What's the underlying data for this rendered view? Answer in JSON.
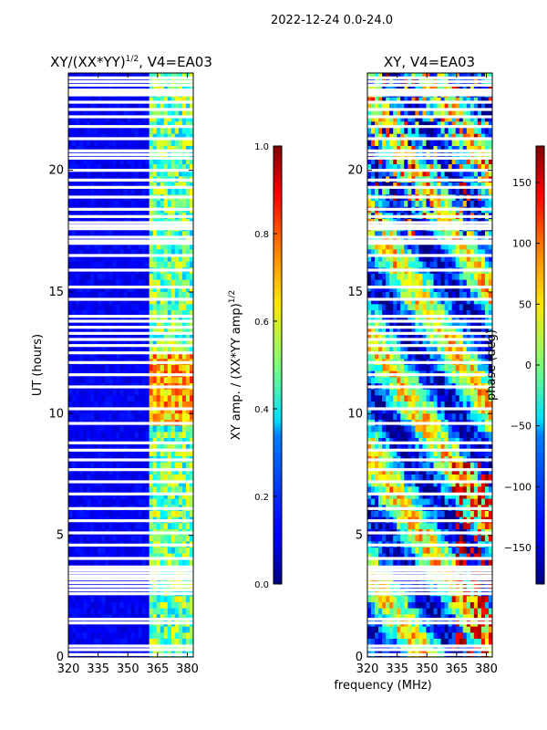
{
  "figure_title": "2022-12-24 0.0-24.0",
  "chart_data": [
    {
      "type": "heatmap",
      "title": "XY/(XX*YY)^1/2, V4=EA03",
      "title_main": "XY/(XX*YY)",
      "title_sup": "1/2",
      "title_tail": ", V4=EA03",
      "xlabel": "",
      "ylabel": "UT (hours)",
      "xlim": [
        320,
        383
      ],
      "ylim": [
        0,
        24
      ],
      "xticks": [
        320,
        335,
        350,
        365,
        380
      ],
      "yticks": [
        0,
        5,
        10,
        15,
        20
      ],
      "colorbar": {
        "label": "XY amp. / (XX*YY amp)^1/2",
        "label_main": "XY amp. / (XX*YY amp)",
        "label_sup": "1/2",
        "range": [
          0.0,
          1.0
        ],
        "ticks": [
          "0.0",
          "0.2",
          "0.4",
          "0.6",
          "0.8",
          "1.0"
        ],
        "colormap": "jet"
      },
      "flagged_hours": [
        0.1,
        0.3,
        0.45,
        1.4,
        1.55,
        2.6,
        2.75,
        2.9,
        3.05,
        3.2,
        3.32,
        3.45,
        3.58,
        3.7,
        4.05,
        4.6,
        5.1,
        5.6,
        6.1,
        6.7,
        7.2,
        7.7,
        8.1,
        8.5,
        8.8,
        9.6,
        10.2,
        11.1,
        11.6,
        12.1,
        12.5,
        12.8,
        13.05,
        13.3,
        13.55,
        13.8,
        14.0,
        14.7,
        15.2,
        15.9,
        16.5,
        17.0,
        17.1,
        17.25,
        17.6,
        17.72,
        17.85,
        18.1,
        18.4,
        18.9,
        19.3,
        19.6,
        20.0,
        20.5,
        20.65,
        20.8,
        21.3,
        21.8,
        22.2,
        22.5,
        22.8,
        23.1,
        23.2,
        23.3,
        23.5,
        23.65,
        23.8
      ]
    },
    {
      "type": "heatmap",
      "title": "XY, V4=EA03",
      "xlabel": "frequency (MHz)",
      "ylabel": "",
      "xlim": [
        320,
        383
      ],
      "ylim": [
        0,
        24
      ],
      "xticks": [
        320,
        335,
        350,
        365,
        380
      ],
      "yticks": [
        0,
        5,
        10,
        15,
        20
      ],
      "colorbar": {
        "label": "phase (deg)",
        "range": [
          -180,
          180
        ],
        "ticks": [
          "−150",
          "−100",
          "−50",
          "0",
          "50",
          "100",
          "150"
        ],
        "tick_values": [
          -150,
          -100,
          -50,
          0,
          50,
          100,
          150
        ],
        "colormap": "jet"
      },
      "flagged_hours": [
        0.1,
        0.3,
        0.45,
        1.4,
        1.55,
        2.6,
        2.75,
        2.9,
        3.05,
        3.2,
        3.32,
        3.45,
        3.58,
        3.7,
        4.05,
        4.6,
        5.1,
        5.6,
        6.1,
        6.7,
        7.2,
        7.7,
        8.1,
        8.5,
        8.8,
        9.6,
        10.2,
        11.1,
        11.6,
        12.1,
        12.5,
        12.8,
        13.05,
        13.3,
        13.55,
        13.8,
        14.0,
        14.7,
        15.2,
        15.9,
        16.5,
        17.0,
        17.1,
        17.25,
        17.6,
        17.72,
        17.85,
        18.1,
        18.4,
        18.9,
        19.3,
        19.6,
        20.0,
        20.5,
        20.65,
        20.8,
        21.3,
        21.8,
        22.2,
        22.5,
        22.8,
        23.1,
        23.2,
        23.3,
        23.5,
        23.65,
        23.8
      ]
    }
  ]
}
